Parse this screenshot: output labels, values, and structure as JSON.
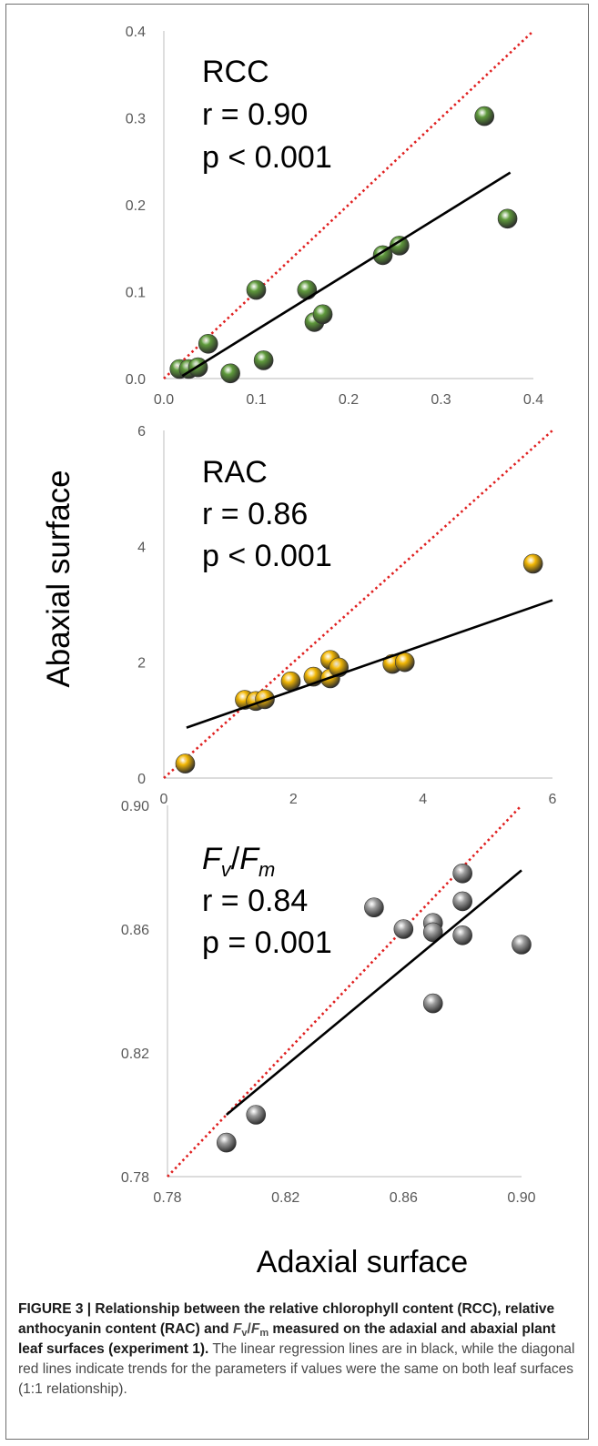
{
  "figure": {
    "ylabel": "Abaxial surface",
    "xlabel": "Adaxial surface",
    "caption": {
      "lead": "FIGURE 3 | Relationship between the relative chlorophyll content (RCC), relative anthocyanin content (RAC) and ",
      "f": "F",
      "v": "v",
      "slash": "/",
      "m": "m",
      "tail": " measured on the adaxial and abaxial plant leaf surfaces (experiment 1).",
      "body": " The linear regression lines are in black, while the diagonal red lines indicate trends for the parameters if values were the same on both leaf surfaces (1:1 relationship)."
    }
  },
  "chart_data": [
    {
      "type": "scatter",
      "id": "rcc",
      "title_lines": [
        "RCC",
        "r = 0.90",
        "p < 0.001"
      ],
      "xlim": [
        0.0,
        0.4
      ],
      "ylim": [
        0.0,
        0.4
      ],
      "x_ticks": [
        "0.0",
        "0.1",
        "0.2",
        "0.3",
        "0.4"
      ],
      "y_ticks": [
        "0.0",
        "0.1",
        "0.2",
        "0.3",
        "0.4"
      ],
      "point_color": "#5f9a3c",
      "regression_color": "#000000",
      "identity_color": "#e02020",
      "regression": {
        "x": [
          0.02,
          0.375
        ],
        "y": [
          0.003,
          0.237
        ]
      },
      "points": [
        {
          "x": 0.017,
          "y": 0.011
        },
        {
          "x": 0.027,
          "y": 0.011
        },
        {
          "x": 0.037,
          "y": 0.013
        },
        {
          "x": 0.048,
          "y": 0.04
        },
        {
          "x": 0.072,
          "y": 0.006
        },
        {
          "x": 0.1,
          "y": 0.102
        },
        {
          "x": 0.108,
          "y": 0.021
        },
        {
          "x": 0.155,
          "y": 0.102
        },
        {
          "x": 0.163,
          "y": 0.065
        },
        {
          "x": 0.172,
          "y": 0.074
        },
        {
          "x": 0.237,
          "y": 0.142
        },
        {
          "x": 0.255,
          "y": 0.153
        },
        {
          "x": 0.347,
          "y": 0.302
        },
        {
          "x": 0.372,
          "y": 0.184
        }
      ]
    },
    {
      "type": "scatter",
      "id": "rac",
      "title_lines": [
        "RAC",
        "r = 0.86",
        "p < 0.001"
      ],
      "xlim": [
        0,
        6
      ],
      "ylim": [
        0,
        6
      ],
      "x_ticks": [
        "0",
        "2",
        "4",
        "6"
      ],
      "y_ticks": [
        "0",
        "2",
        "4",
        "6"
      ],
      "point_color": "#f2b705",
      "regression_color": "#000000",
      "identity_color": "#e02020",
      "regression": {
        "x": [
          0.35,
          6.0
        ],
        "y": [
          0.87,
          3.07
        ]
      },
      "points": [
        {
          "x": 0.33,
          "y": 0.25
        },
        {
          "x": 1.25,
          "y": 1.35
        },
        {
          "x": 1.42,
          "y": 1.33
        },
        {
          "x": 1.56,
          "y": 1.36
        },
        {
          "x": 1.96,
          "y": 1.67
        },
        {
          "x": 2.31,
          "y": 1.75
        },
        {
          "x": 2.57,
          "y": 2.04
        },
        {
          "x": 2.57,
          "y": 1.72
        },
        {
          "x": 2.7,
          "y": 1.91
        },
        {
          "x": 3.53,
          "y": 1.97
        },
        {
          "x": 3.72,
          "y": 2.0
        },
        {
          "x": 5.7,
          "y": 3.7
        }
      ]
    },
    {
      "type": "scatter",
      "id": "fvfm",
      "title_f": "F",
      "title_v": "v",
      "title_slash": "/",
      "title_m": "m",
      "title_lines": [
        "r = 0.84",
        "p = 0.001"
      ],
      "xlim": [
        0.78,
        0.9
      ],
      "ylim": [
        0.78,
        0.9
      ],
      "x_ticks": [
        "0.78",
        "0.82",
        "0.86",
        "0.90"
      ],
      "y_ticks": [
        "0.78",
        "0.82",
        "0.86",
        "0.90"
      ],
      "point_color": "#9e9e9e",
      "regression_color": "#000000",
      "identity_color": "#e02020",
      "regression": {
        "x": [
          0.8,
          0.9
        ],
        "y": [
          0.8,
          0.879
        ]
      },
      "points": [
        {
          "x": 0.8,
          "y": 0.791
        },
        {
          "x": 0.81,
          "y": 0.8
        },
        {
          "x": 0.85,
          "y": 0.867
        },
        {
          "x": 0.86,
          "y": 0.86
        },
        {
          "x": 0.87,
          "y": 0.862
        },
        {
          "x": 0.87,
          "y": 0.859
        },
        {
          "x": 0.87,
          "y": 0.836
        },
        {
          "x": 0.88,
          "y": 0.878
        },
        {
          "x": 0.88,
          "y": 0.869
        },
        {
          "x": 0.88,
          "y": 0.858
        },
        {
          "x": 0.9,
          "y": 0.855
        }
      ]
    }
  ]
}
